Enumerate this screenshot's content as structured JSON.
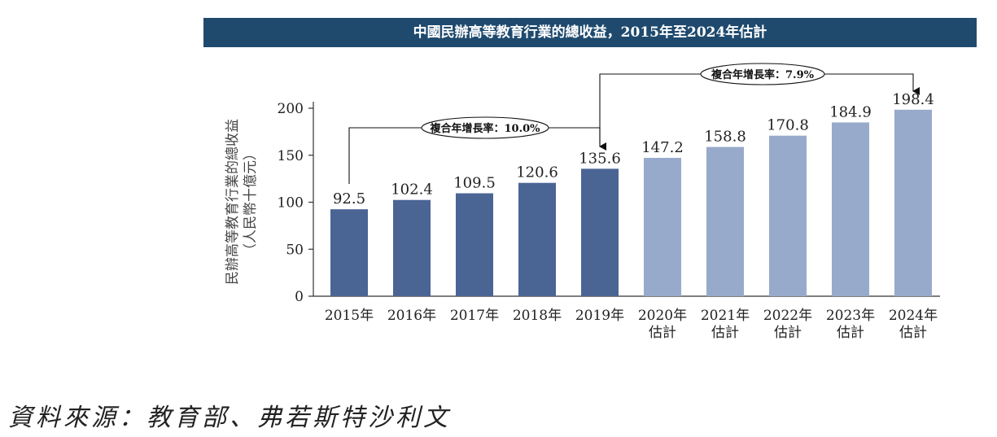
{
  "chart_data": {
    "type": "bar",
    "title": "中國民辦高等教育行業的總收益，2015年至2024年估計",
    "ylabel": "民辦高等教育行業的總收益",
    "ylabel_unit": "（人民幣十億元）",
    "xlabel": "",
    "ylim": [
      0,
      200
    ],
    "yticks": [
      0,
      50,
      100,
      150,
      200
    ],
    "grid": false,
    "categories": [
      [
        "2015年"
      ],
      [
        "2016年"
      ],
      [
        "2017年"
      ],
      [
        "2018年"
      ],
      [
        "2019年"
      ],
      [
        "2020年",
        "估計"
      ],
      [
        "2021年",
        "估計"
      ],
      [
        "2022年",
        "估計"
      ],
      [
        "2023年",
        "估計"
      ],
      [
        "2024年",
        "估計"
      ]
    ],
    "values": [
      92.5,
      102.4,
      109.5,
      120.6,
      135.6,
      147.2,
      158.8,
      170.8,
      184.9,
      198.4
    ],
    "value_labels": [
      "92.5",
      "102.4",
      "109.5",
      "120.6",
      "135.6",
      "147.2",
      "158.8",
      "170.8",
      "184.9",
      "198.4"
    ],
    "bar_groups": [
      "actual",
      "actual",
      "actual",
      "actual",
      "actual",
      "estimate",
      "estimate",
      "estimate",
      "estimate",
      "estimate"
    ],
    "colors": {
      "actual": "#4a6494",
      "estimate": "#97aacb",
      "title_bg": "#1f4a6e",
      "axis": "#333333",
      "text": "#222222",
      "annotation": "#111111"
    },
    "annotations": [
      {
        "text": "複合年增長率：10.0%",
        "from_index": 0,
        "to_index": 4
      },
      {
        "text": "複合年增長率：7.9%",
        "from_index": 4,
        "to_index": 9
      }
    ]
  },
  "source": "資料來源：教育部、弗若斯特沙利文"
}
